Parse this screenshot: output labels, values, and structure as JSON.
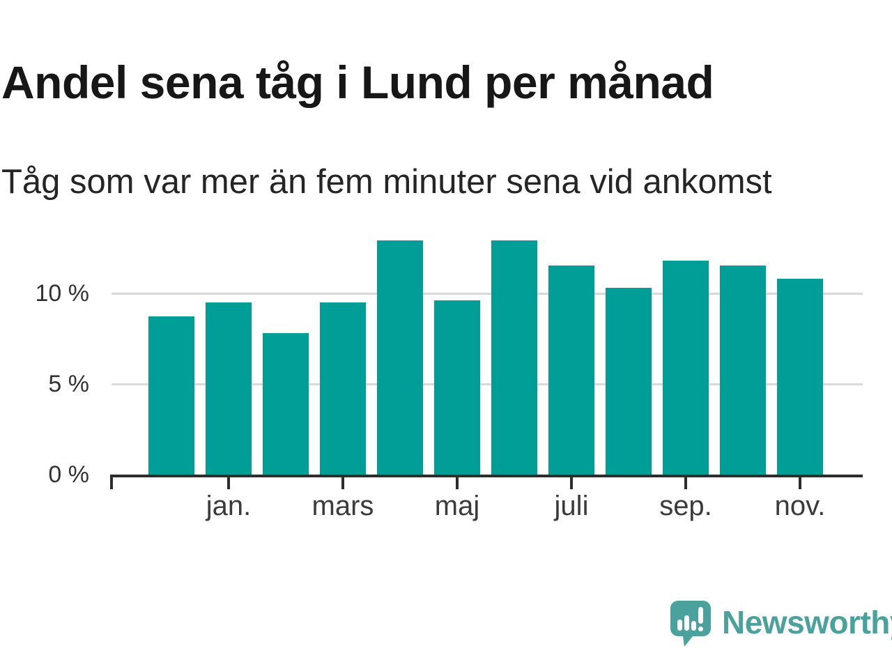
{
  "header": {
    "title": "Andel sena tåg i Lund per månad",
    "subtitle": "Tåg som var mer än fem minuter sena vid ankomst"
  },
  "chart_data": {
    "type": "bar",
    "title": "Andel sena tåg i Lund per månad",
    "subtitle": "Tåg som var mer än fem minuter sena vid ankomst",
    "unit": "percent",
    "n_bars": 12,
    "values": [
      8.7,
      9.5,
      7.8,
      9.5,
      12.9,
      9.6,
      12.9,
      11.5,
      10.3,
      11.8,
      11.5,
      10.8
    ],
    "x_ticks": [
      {
        "label": "jan.",
        "bar_index": 1
      },
      {
        "label": "mars",
        "bar_index": 3
      },
      {
        "label": "maj",
        "bar_index": 5
      },
      {
        "label": "juli",
        "bar_index": 7
      },
      {
        "label": "sep.",
        "bar_index": 9
      },
      {
        "label": "nov.",
        "bar_index": 11
      }
    ],
    "y_ticks": [
      {
        "label": "0 %",
        "value": 0
      },
      {
        "label": "5 %",
        "value": 5
      },
      {
        "label": "10 %",
        "value": 10
      }
    ],
    "ylim": [
      0,
      13.5
    ],
    "bar_color": "#009e97",
    "gridline_color": "#d9d9d9",
    "axis_color": "#2d2d2d",
    "grid": "horizontal-only",
    "legend": "none"
  },
  "footer": {
    "brand": "Newsworthy",
    "logo": "newsworthy-speech-bubble-bar-chart-icon",
    "brand_color": "#4ba19b"
  }
}
